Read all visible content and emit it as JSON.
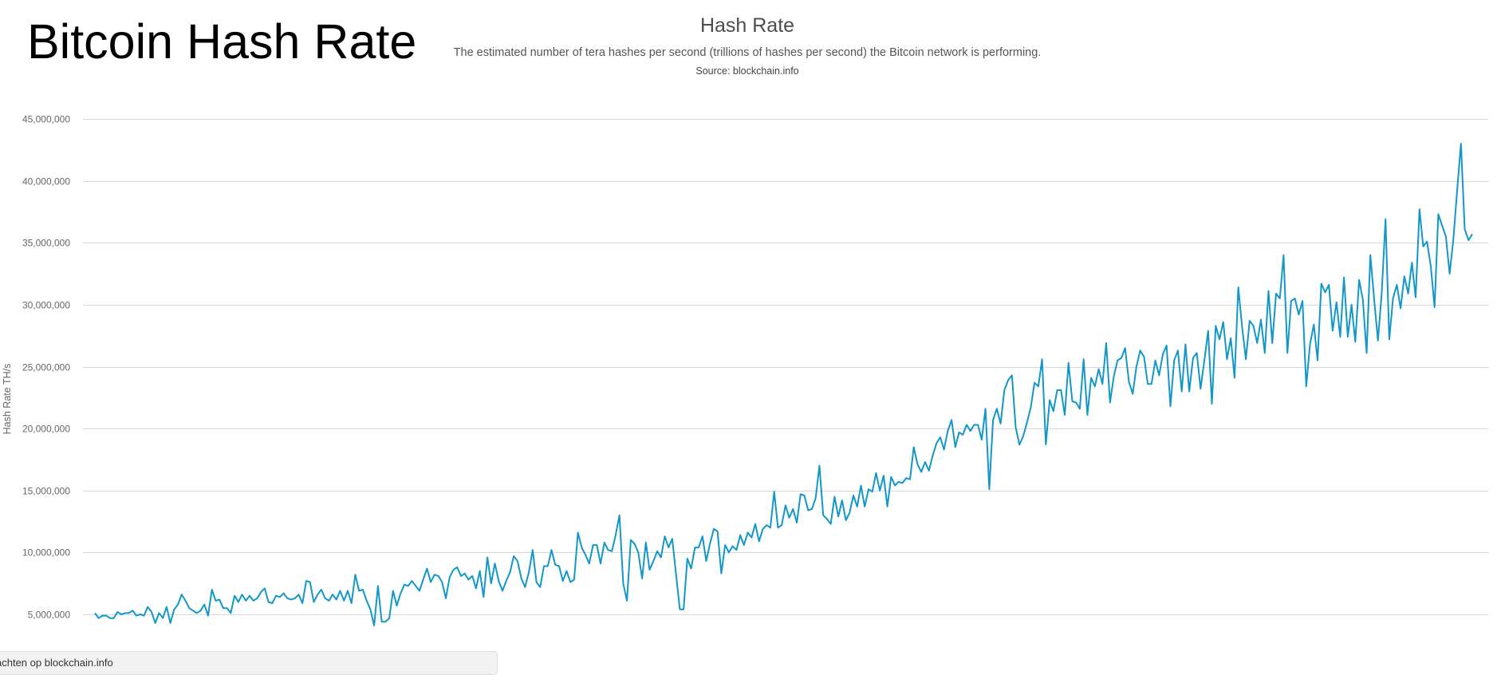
{
  "page": {
    "title": "Bitcoin Hash Rate"
  },
  "footer": {
    "link_text": "achten op blockchain.info"
  },
  "colors": {
    "line": "#1297c9",
    "grid": "#d9d9d9",
    "axis_text": "#666666",
    "title_text": "#4d4d4d"
  },
  "chart_data": {
    "type": "line",
    "title": "Hash Rate",
    "subtitle": "The estimated number of tera hashes per second (trillions of hashes per second) the Bitcoin network is performing.",
    "source": "Source: blockchain.info",
    "xlabel": "",
    "ylabel": "Hash Rate TH/s",
    "ylim": [
      3500000,
      45000000
    ],
    "yticks": [
      5000000,
      10000000,
      15000000,
      20000000,
      25000000,
      30000000,
      35000000,
      40000000,
      45000000
    ],
    "ytick_labels": [
      "5,000,000",
      "10,000,000",
      "15,000,000",
      "20,000,000",
      "25,000,000",
      "30,000,000",
      "35,000,000",
      "40,000,000",
      "45,000,000"
    ],
    "grid": true,
    "legend": "none",
    "series": [
      {
        "values": [
          5100000,
          4700000,
          4900000,
          4900000,
          4700000,
          4700000,
          5200000,
          5000000,
          5100000,
          5100000,
          5300000,
          4900000,
          5000000,
          4900000,
          5600000,
          5200000,
          4300000,
          5100000,
          4700000,
          5600000,
          4300000,
          5400000,
          5800000,
          6600000,
          6100000,
          5500000,
          5300000,
          5100000,
          5300000,
          5800000,
          4900000,
          7000000,
          6100000,
          6200000,
          5500000,
          5500000,
          5100000,
          6500000,
          6000000,
          6600000,
          6100000,
          6500000,
          6100000,
          6300000,
          6800000,
          7100000,
          6000000,
          5900000,
          6500000,
          6400000,
          6700000,
          6300000,
          6200000,
          6300000,
          6600000,
          5900000,
          7700000,
          7600000,
          6000000,
          6600000,
          7000000,
          6300000,
          6100000,
          6600000,
          6200000,
          6900000,
          6100000,
          6900000,
          5900000,
          8200000,
          6900000,
          7000000,
          6100000,
          5400000,
          4100000,
          7300000,
          4400000,
          4400000,
          4700000,
          6900000,
          5700000,
          6700000,
          7400000,
          7300000,
          7700000,
          7300000,
          6900000,
          7800000,
          8700000,
          7600000,
          8200000,
          8100000,
          7600000,
          6300000,
          8000000,
          8600000,
          8800000,
          8100000,
          8300000,
          7800000,
          8100000,
          7100000,
          8500000,
          6400000,
          9600000,
          7500000,
          9100000,
          7700000,
          6900000,
          7700000,
          8400000,
          9700000,
          9300000,
          7900000,
          7200000,
          8400000,
          10200000,
          7600000,
          7200000,
          8900000,
          8900000,
          10200000,
          9000000,
          8900000,
          7700000,
          8500000,
          7600000,
          7800000,
          11600000,
          10400000,
          9800000,
          9100000,
          10600000,
          10600000,
          9100000,
          10800000,
          10200000,
          10100000,
          11400000,
          13000000,
          7500000,
          6100000,
          11000000,
          10700000,
          10000000,
          7900000,
          10800000,
          8600000,
          9300000,
          10100000,
          9600000,
          11300000,
          10400000,
          11100000,
          8200000,
          5400000,
          5400000,
          9500000,
          8700000,
          10400000,
          10400000,
          11300000,
          9300000,
          10700000,
          11900000,
          11700000,
          8300000,
          10600000,
          10000000,
          10500000,
          10200000,
          11400000,
          10600000,
          11600000,
          11200000,
          12300000,
          10900000,
          11900000,
          12200000,
          12000000,
          14900000,
          12000000,
          12200000,
          13800000,
          12800000,
          13500000,
          12400000,
          14700000,
          14600000,
          13400000,
          13500000,
          14400000,
          17000000,
          13000000,
          12700000,
          12300000,
          14500000,
          12900000,
          14200000,
          12600000,
          13200000,
          14600000,
          13700000,
          15400000,
          13700000,
          15100000,
          14900000,
          16400000,
          15000000,
          16200000,
          13700000,
          16100000,
          15400000,
          15700000,
          15600000,
          16000000,
          15900000,
          18500000,
          17100000,
          16500000,
          17300000,
          16600000,
          17800000,
          18800000,
          19300000,
          18300000,
          19800000,
          20700000,
          18500000,
          19700000,
          19500000,
          20300000,
          19800000,
          20300000,
          20300000,
          19100000,
          21600000,
          15100000,
          20700000,
          21600000,
          20400000,
          23100000,
          23900000,
          24300000,
          20100000,
          18700000,
          19400000,
          20500000,
          21700000,
          23700000,
          23400000,
          25600000,
          18700000,
          22300000,
          21400000,
          23100000,
          23100000,
          21100000,
          25300000,
          22200000,
          22100000,
          21600000,
          25600000,
          21100000,
          24100000,
          23400000,
          24800000,
          23600000,
          26900000,
          22100000,
          24200000,
          25500000,
          25700000,
          26500000,
          23800000,
          22800000,
          25000000,
          26300000,
          25800000,
          23600000,
          23600000,
          25500000,
          24300000,
          26000000,
          26700000,
          21800000,
          25500000,
          26300000,
          23000000,
          26800000,
          23000000,
          25700000,
          26100000,
          23200000,
          25500000,
          27900000,
          22000000,
          28300000,
          27200000,
          28600000,
          25600000,
          27300000,
          24100000,
          31400000,
          28200000,
          25600000,
          28700000,
          28300000,
          26900000,
          28800000,
          26100000,
          31100000,
          26900000,
          30900000,
          30500000,
          34000000,
          26100000,
          30300000,
          30500000,
          29200000,
          30300000,
          23400000,
          26800000,
          28400000,
          25500000,
          31700000,
          31000000,
          31600000,
          27900000,
          30200000,
          27400000,
          32200000,
          27400000,
          30000000,
          27000000,
          32000000,
          30400000,
          26100000,
          34000000,
          30400000,
          27100000,
          30900000,
          36900000,
          27200000,
          30500000,
          31600000,
          29700000,
          32300000,
          30900000,
          33400000,
          30600000,
          37700000,
          34700000,
          35100000,
          33100000,
          29800000,
          37300000,
          36400000,
          35500000,
          32500000,
          35300000,
          39300000,
          43000000,
          36100000,
          35200000,
          35700000
        ]
      }
    ]
  }
}
